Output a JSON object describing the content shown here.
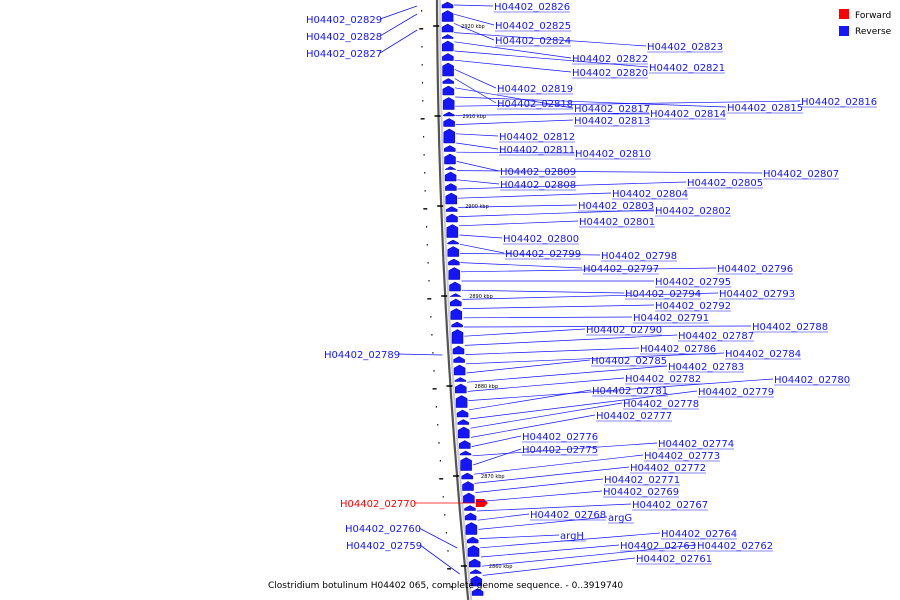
{
  "colors": {
    "forward": "#ff0000",
    "reverse": "#1515ff",
    "backbone": "#777777"
  },
  "legend": {
    "forward": "Forward",
    "reverse": "Reverse"
  },
  "caption": "Clostridium botulinum H04402 065, complete genome sequence. - 0..3919740",
  "ticks": [
    "2920 kbp",
    "2910 kbp",
    "2900 kbp",
    "2890 kbp",
    "2880 kbp",
    "2870 kbp",
    "2860 kbp"
  ],
  "genes_left": [
    {
      "text": "H04402_02829",
      "strand": "reverse"
    },
    {
      "text": "H04402_02828",
      "strand": "reverse"
    },
    {
      "text": "H04402_02827",
      "strand": "reverse"
    },
    {
      "text": "H04402_02789",
      "strand": "reverse"
    },
    {
      "text": "H04402_02770",
      "strand": "forward"
    },
    {
      "text": "H04402_02760",
      "strand": "reverse"
    },
    {
      "text": "H04402_02759",
      "strand": "reverse"
    }
  ],
  "genes_right": [
    {
      "text": "H04402_02826"
    },
    {
      "text": "H04402_02825"
    },
    {
      "text": "H04402_02824"
    },
    {
      "text": "H04402_02823"
    },
    {
      "text": "H04402_02822"
    },
    {
      "text": "H04402_02821"
    },
    {
      "text": "H04402_02820"
    },
    {
      "text": "H04402_02819"
    },
    {
      "text": "H04402_02818"
    },
    {
      "text": "H04402_02817"
    },
    {
      "text": "H04402_02815"
    },
    {
      "text": "H04402_02816"
    },
    {
      "text": "H04402_02814"
    },
    {
      "text": "H04402_02813"
    },
    {
      "text": "H04402_02812"
    },
    {
      "text": "H04402_02811"
    },
    {
      "text": "H04402_02810"
    },
    {
      "text": "H04402_02809"
    },
    {
      "text": "H04402_02807"
    },
    {
      "text": "H04402_02808"
    },
    {
      "text": "H04402_02805"
    },
    {
      "text": "H04402_02804"
    },
    {
      "text": "H04402_02803"
    },
    {
      "text": "H04402_02802"
    },
    {
      "text": "H04402_02801"
    },
    {
      "text": "H04402_02800"
    },
    {
      "text": "H04402_02799"
    },
    {
      "text": "H04402_02798"
    },
    {
      "text": "H04402_02797"
    },
    {
      "text": "H04402_02796"
    },
    {
      "text": "H04402_02795"
    },
    {
      "text": "H04402_02794"
    },
    {
      "text": "H04402_02793"
    },
    {
      "text": "H04402_02792"
    },
    {
      "text": "H04402_02791"
    },
    {
      "text": "H04402_02788"
    },
    {
      "text": "H04402_02790"
    },
    {
      "text": "H04402_02787"
    },
    {
      "text": "H04402_02786"
    },
    {
      "text": "H04402_02784"
    },
    {
      "text": "H04402_02785"
    },
    {
      "text": "H04402_02783"
    },
    {
      "text": "H04402_02782"
    },
    {
      "text": "H04402_02780"
    },
    {
      "text": "H04402_02781"
    },
    {
      "text": "H04402_02779"
    },
    {
      "text": "H04402_02778"
    },
    {
      "text": "H04402_02777"
    },
    {
      "text": "H04402_02776"
    },
    {
      "text": "H04402_02774"
    },
    {
      "text": "H04402_02775"
    },
    {
      "text": "H04402_02773"
    },
    {
      "text": "H04402_02772"
    },
    {
      "text": "H04402_02771"
    },
    {
      "text": "H04402_02769"
    },
    {
      "text": "H04402_02767"
    },
    {
      "text": "H04402_02768"
    },
    {
      "text": "argG"
    },
    {
      "text": "argH"
    },
    {
      "text": "H04402_02764"
    },
    {
      "text": "H04402_02763"
    },
    {
      "text": "H04402_02762"
    },
    {
      "text": "H04402_02761"
    }
  ]
}
